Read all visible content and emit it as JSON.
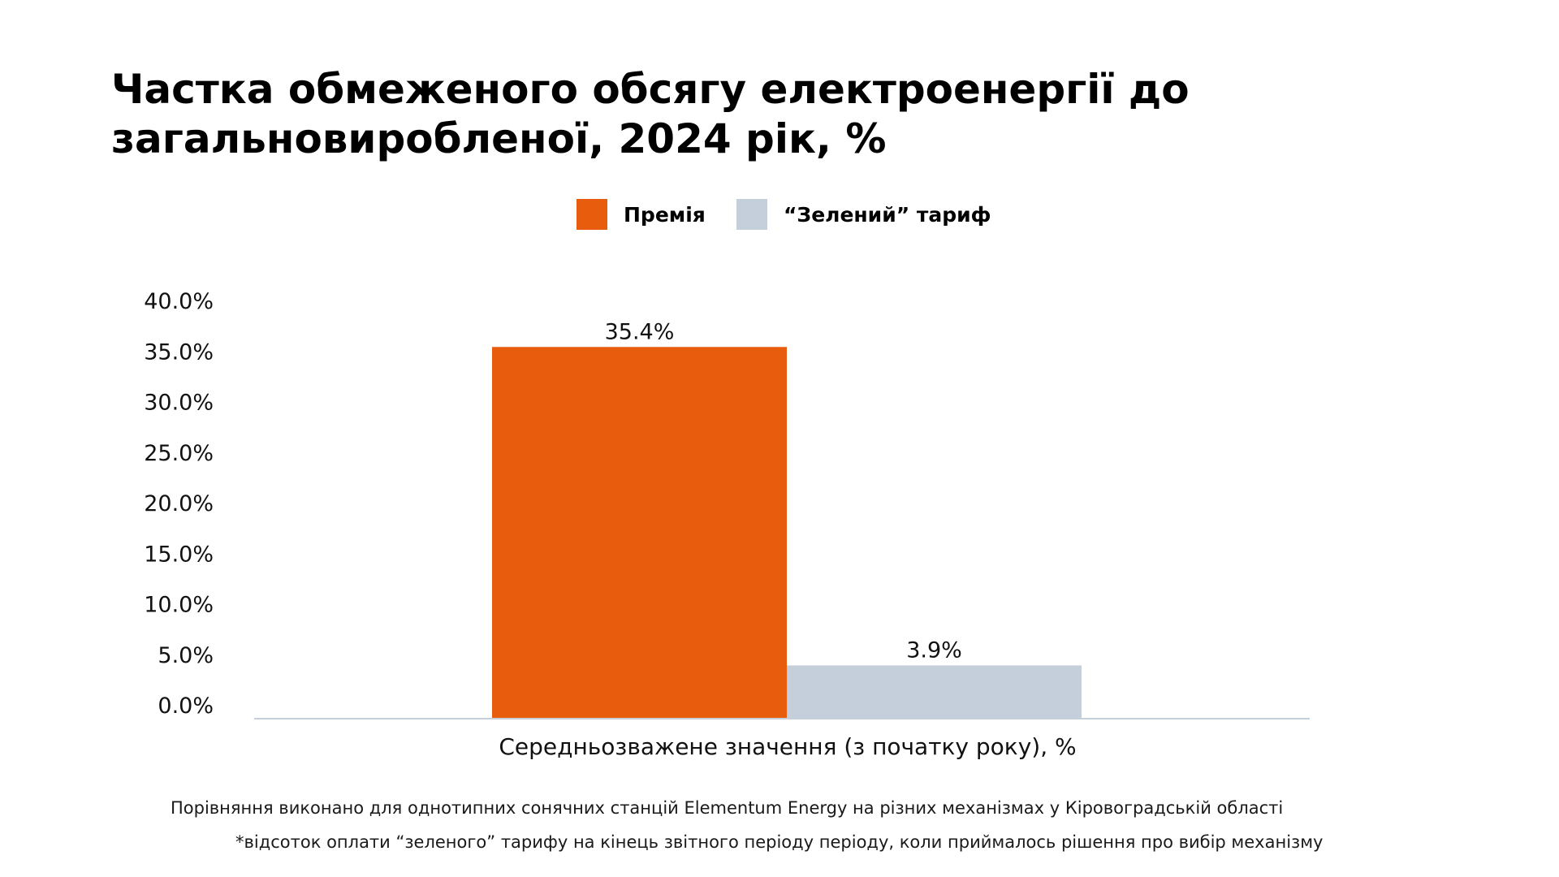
{
  "chart_data": {
    "type": "bar",
    "title_lines": [
      "Частка обмеженого обсягу електроенергії до",
      "загальновиробленої, 2024 рік, %"
    ],
    "categories": [
      "Середньозважене значення (з початку року), %"
    ],
    "series": [
      {
        "name": "Премія",
        "color": "#E85C0D",
        "values": [
          35.4
        ],
        "data_labels": [
          "35.4%"
        ]
      },
      {
        "name": "“Зелений” тариф",
        "color": "#C5CFDC",
        "values": [
          3.9
        ],
        "data_labels": [
          "3.9%"
        ]
      }
    ],
    "xlabel": "Середньозважене значення (з початку року), %",
    "ylabel": "",
    "ylim": [
      0,
      40
    ],
    "yticks": [
      0,
      5,
      10,
      15,
      20,
      25,
      30,
      35,
      40
    ],
    "ytick_labels": [
      "0.0%",
      "5.0%",
      "10.0%",
      "15.0%",
      "20.0%",
      "25.0%",
      "30.0%",
      "35.0%",
      "40.0%"
    ],
    "grid": false,
    "legend_position": "top"
  },
  "legend": {
    "items": [
      {
        "label": "Премія",
        "color": "#E85C0D"
      },
      {
        "label": "“Зелений” тариф",
        "color": "#C5CFDC"
      }
    ]
  },
  "notes": {
    "line1": "Порівняння виконано для однотипних сонячних станцій Elementum Energy на різних механізмах у Кіровоградській області",
    "line2": "*відсоток оплати “зеленого” тарифу на кінець звітного періоду періоду, коли приймалось рішення про вибір механізму"
  },
  "colors": {
    "axis": "#C5CFDC"
  }
}
